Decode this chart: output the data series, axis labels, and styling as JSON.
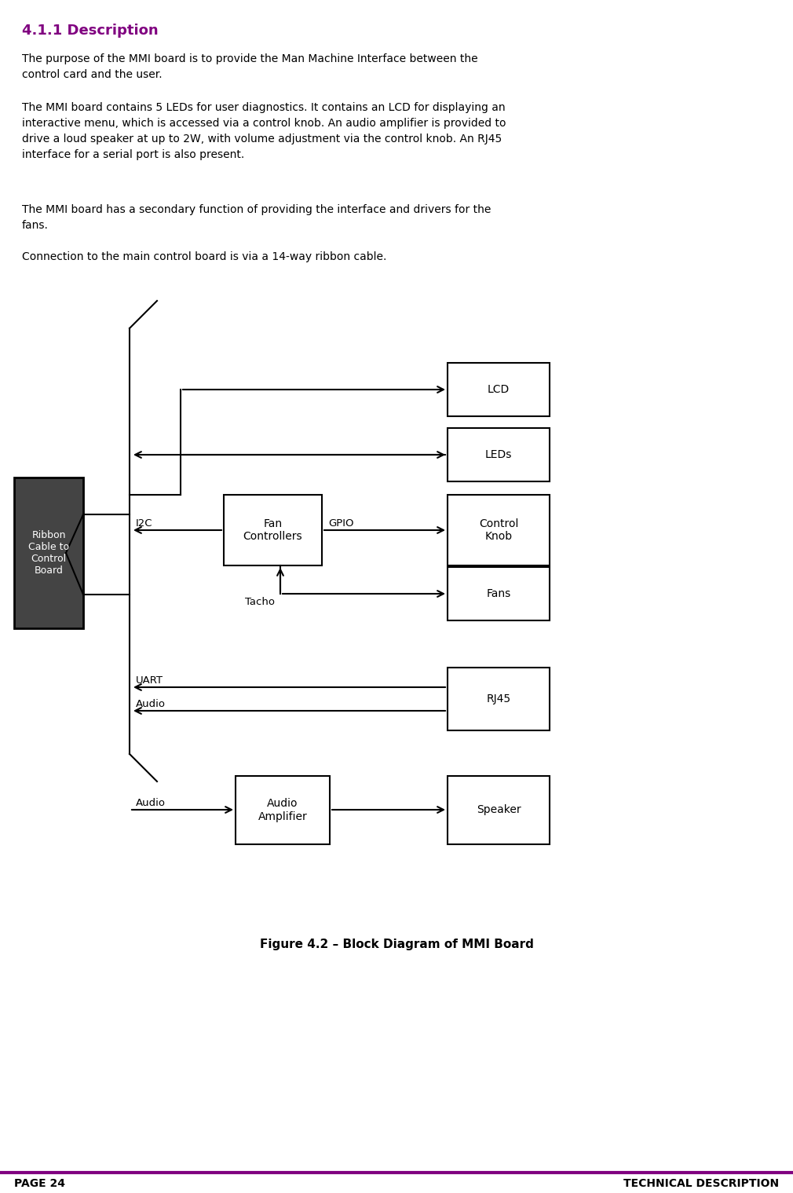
{
  "title": "4.1.1 Description",
  "title_color": "#800080",
  "para1": "The purpose of the MMI board is to provide the Man Machine Interface between the\ncontrol card and the user.",
  "para2": "The MMI board contains 5 LEDs for user diagnostics. It contains an LCD for displaying an\ninteractive menu, which is accessed via a control knob. An audio amplifier is provided to\ndrive a loud speaker at up to 2W, with volume adjustment via the control knob. An RJ45\ninterface for a serial port is also present.",
  "para3": "The MMI board has a secondary function of providing the interface and drivers for the\nfans.",
  "para4": "Connection to the main control board is via a 14-way ribbon cable.",
  "fig_caption": "Figure 4.2 – Block Diagram of MMI Board",
  "footer_left": "PAGE 24",
  "footer_right": "TECHNICAL DESCRIPTION",
  "footer_color": "#800080"
}
